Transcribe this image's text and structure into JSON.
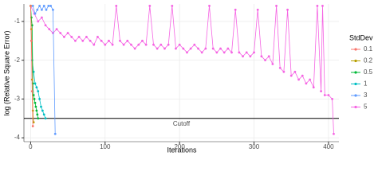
{
  "chart_data": {
    "type": "line",
    "xlabel": "Iterations",
    "ylabel": "log (Relative Square Error)",
    "xlim": [
      -9,
      414
    ],
    "xticks": [
      0,
      100,
      200,
      300,
      400
    ],
    "ylim": [
      -4.1,
      -0.55
    ],
    "yticks": [
      -4,
      -3,
      -2,
      -1
    ],
    "grid": true,
    "legend_title": "StdDev",
    "legend_position": "right",
    "cutoff": {
      "value": -3.5,
      "label": "Cutoff"
    },
    "series": [
      {
        "name": "0.1",
        "color": "#F8766D",
        "x": [
          0,
          1,
          2,
          3
        ],
        "values": [
          -0.6,
          -1.5,
          -2.8,
          -3.7
        ]
      },
      {
        "name": "0.2",
        "color": "#B79F00",
        "x": [
          0,
          1,
          2,
          3,
          4
        ],
        "values": [
          -0.6,
          -1.2,
          -2.5,
          -3.3,
          -3.6
        ]
      },
      {
        "name": "0.5",
        "color": "#00BA38",
        "x": [
          0,
          1,
          2,
          3,
          4,
          5,
          6,
          7,
          8,
          9,
          10
        ],
        "values": [
          -0.6,
          -0.9,
          -1.1,
          -2.6,
          -2.9,
          -3.0,
          -3.1,
          -3.2,
          -3.3,
          -3.4,
          -3.5
        ]
      },
      {
        "name": "1",
        "color": "#00BFC4",
        "x": [
          0,
          2,
          4,
          6,
          8,
          10,
          12,
          14,
          16,
          18,
          20
        ],
        "values": [
          -0.6,
          -2.0,
          -2.3,
          -2.6,
          -2.7,
          -2.8,
          -3.0,
          -3.2,
          -3.3,
          -3.4,
          -3.5
        ]
      },
      {
        "name": "3",
        "color": "#619CFF",
        "x": [
          0,
          3,
          6,
          9,
          12,
          15,
          18,
          21,
          24,
          27,
          30,
          33
        ],
        "values": [
          -0.6,
          -0.6,
          -0.8,
          -0.7,
          -0.6,
          -0.7,
          -0.6,
          -0.7,
          -0.6,
          -0.6,
          -0.7,
          -3.9
        ]
      },
      {
        "name": "5",
        "color": "#F564E3",
        "x": [
          0,
          5,
          10,
          15,
          20,
          25,
          30,
          35,
          40,
          45,
          50,
          55,
          60,
          65,
          70,
          75,
          80,
          85,
          90,
          95,
          100,
          105,
          110,
          115,
          120,
          125,
          130,
          135,
          140,
          145,
          150,
          155,
          160,
          165,
          170,
          175,
          180,
          185,
          190,
          195,
          200,
          205,
          210,
          215,
          220,
          225,
          230,
          235,
          240,
          245,
          250,
          255,
          260,
          265,
          270,
          275,
          280,
          285,
          290,
          295,
          300,
          305,
          310,
          315,
          320,
          325,
          330,
          335,
          340,
          345,
          350,
          355,
          360,
          365,
          370,
          375,
          380,
          385,
          390,
          392,
          395,
          400,
          405,
          407
        ],
        "values": [
          -0.6,
          -0.8,
          -1.0,
          -0.9,
          -1.1,
          -1.2,
          -1.3,
          -1.2,
          -1.3,
          -1.4,
          -1.3,
          -1.4,
          -1.5,
          -1.4,
          -1.5,
          -1.4,
          -1.5,
          -1.6,
          -1.4,
          -1.5,
          -1.6,
          -1.5,
          -1.6,
          -0.6,
          -1.5,
          -1.6,
          -1.5,
          -1.6,
          -1.7,
          -1.6,
          -1.5,
          -1.6,
          -0.6,
          -1.6,
          -1.7,
          -1.6,
          -1.7,
          -1.6,
          -0.6,
          -1.7,
          -1.6,
          -1.7,
          -1.8,
          -1.7,
          -1.6,
          -1.7,
          -1.8,
          -1.7,
          -0.6,
          -1.7,
          -1.8,
          -1.7,
          -1.8,
          -1.7,
          -1.8,
          -0.7,
          -1.8,
          -1.9,
          -1.8,
          -1.9,
          -1.8,
          -0.7,
          -1.9,
          -2.0,
          -1.9,
          -2.1,
          -0.6,
          -2.2,
          -2.3,
          -0.7,
          -2.4,
          -2.3,
          -2.5,
          -2.4,
          -2.6,
          -2.5,
          -2.7,
          -0.6,
          -2.8,
          -0.6,
          -2.9,
          -2.9,
          -3.0,
          -3.9
        ]
      }
    ]
  }
}
